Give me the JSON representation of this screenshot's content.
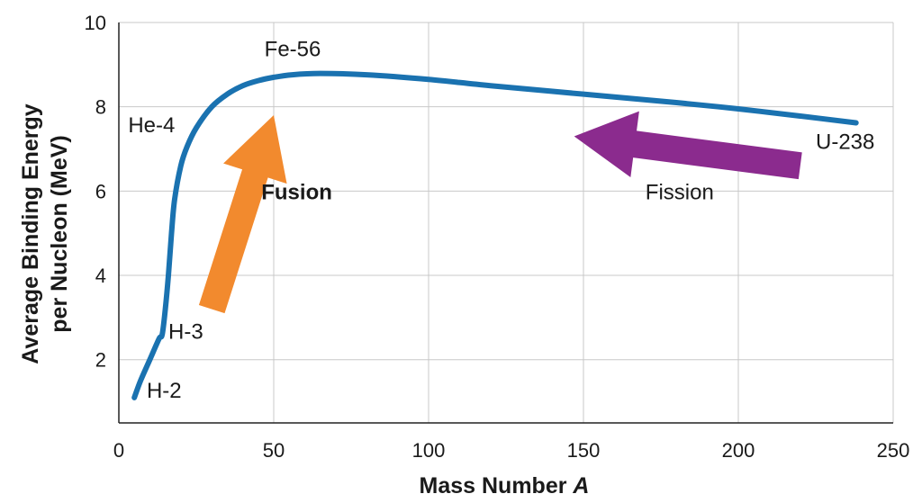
{
  "chart_data": {
    "type": "line",
    "title": "",
    "xlabel": "Mass Number",
    "xlabel_var": "A",
    "ylabel_line1": "Average Binding Energy",
    "ylabel_line2": "per Nucleon (MeV)",
    "xlim": [
      0,
      250
    ],
    "ylim": [
      0.5,
      10
    ],
    "xticks": [
      0,
      50,
      100,
      150,
      200,
      250
    ],
    "yticks": [
      2,
      4,
      6,
      8,
      10
    ],
    "grid": true,
    "series": [
      {
        "color": "#1a72b0",
        "points": [
          [
            5,
            1.1
          ],
          [
            7,
            1.5
          ],
          [
            10,
            2.0
          ],
          [
            13,
            2.5
          ],
          [
            14,
            2.6
          ],
          [
            15,
            3.2
          ],
          [
            16,
            4.0
          ],
          [
            17,
            5.0
          ],
          [
            18,
            5.8
          ],
          [
            20,
            6.6
          ],
          [
            22,
            7.05
          ],
          [
            25,
            7.5
          ],
          [
            30,
            8.0
          ],
          [
            35,
            8.3
          ],
          [
            40,
            8.5
          ],
          [
            45,
            8.62
          ],
          [
            50,
            8.7
          ],
          [
            56,
            8.76
          ],
          [
            65,
            8.79
          ],
          [
            80,
            8.76
          ],
          [
            100,
            8.65
          ],
          [
            120,
            8.5
          ],
          [
            150,
            8.3
          ],
          [
            180,
            8.1
          ],
          [
            200,
            7.95
          ],
          [
            220,
            7.78
          ],
          [
            238,
            7.62
          ]
        ]
      }
    ],
    "annotations": [
      {
        "text": "H-2",
        "x": 9,
        "y": 1.1
      },
      {
        "text": "H-3",
        "x": 16,
        "y": 2.5
      },
      {
        "text": "He-4",
        "x": 3,
        "y": 7.4
      },
      {
        "text": "Fe-56",
        "x": 47,
        "y": 9.2
      },
      {
        "text": "U-238",
        "x": 225,
        "y": 7.0
      },
      {
        "text": "Fusion",
        "x": 46,
        "y": 5.8,
        "bold": true
      },
      {
        "text": "Fission",
        "x": 170,
        "y": 5.8
      }
    ],
    "arrows": [
      {
        "name": "fusion-arrow",
        "color": "#f28a2e",
        "from": [
          30,
          3.2
        ],
        "to": [
          50,
          7.8
        ]
      },
      {
        "name": "fission-arrow",
        "color": "#8b2b8e",
        "from": [
          220,
          6.6
        ],
        "to": [
          147,
          7.3
        ]
      }
    ]
  }
}
